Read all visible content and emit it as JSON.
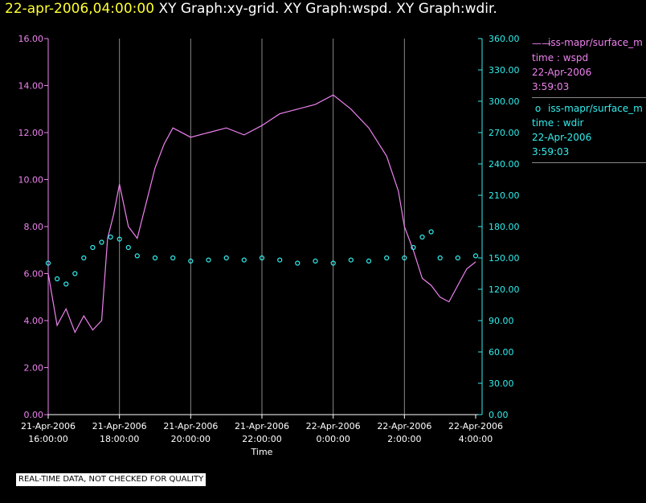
{
  "header": {
    "timestamp": "22-apr-2006,04:00:00",
    "graphs": "XY Graph:xy-grid.  XY Graph:wspd.  XY Graph:wdir."
  },
  "footer": {
    "notice": "REAL-TIME DATA, NOT CHECKED FOR QUALITY"
  },
  "legend": [
    {
      "name": "iss-mapr/surface_m",
      "var": "time : wspd",
      "date": "22-Apr-2006",
      "time": "3:59:03",
      "color": "#ee82ee"
    },
    {
      "name": "iss-mapr/surface_m",
      "var": "time : wdir",
      "date": "22-Apr-2006",
      "time": "3:59:03",
      "color": "#33eeee"
    }
  ],
  "chart_data": {
    "type": "line",
    "xlabel": "Time",
    "x_ticks": [
      [
        "21-Apr-2006",
        "16:00:00"
      ],
      [
        "21-Apr-2006",
        "18:00:00"
      ],
      [
        "21-Apr-2006",
        "20:00:00"
      ],
      [
        "21-Apr-2006",
        "22:00:00"
      ],
      [
        "22-Apr-2006",
        "0:00:00"
      ],
      [
        "22-Apr-2006",
        "2:00:00"
      ],
      [
        "22-Apr-2006",
        "4:00:00"
      ]
    ],
    "xlim": [
      "2006-04-21 16:00",
      "2006-04-22 04:00"
    ],
    "y_left": {
      "lim": [
        0,
        16
      ],
      "ticks": [
        "0.00",
        "2.00",
        "4.00",
        "6.00",
        "8.00",
        "10.00",
        "12.00",
        "14.00",
        "16.00"
      ],
      "color": "#ee82ee"
    },
    "y_right": {
      "lim": [
        0,
        360
      ],
      "ticks": [
        "0.00",
        "30.00",
        "60.00",
        "90.00",
        "120.00",
        "150.00",
        "180.00",
        "210.00",
        "240.00",
        "270.00",
        "300.00",
        "330.00",
        "360.00"
      ],
      "color": "#33eeee"
    },
    "grid": "vertical",
    "series": [
      {
        "name": "time : wspd",
        "axis": "left",
        "style": "line",
        "color": "#ee82ee",
        "points": [
          [
            "2006-04-21 16:00",
            6.0
          ],
          [
            "2006-04-21 16:15",
            3.8
          ],
          [
            "2006-04-21 16:30",
            4.5
          ],
          [
            "2006-04-21 16:45",
            3.5
          ],
          [
            "2006-04-21 17:00",
            4.2
          ],
          [
            "2006-04-21 17:15",
            3.6
          ],
          [
            "2006-04-21 17:30",
            4.0
          ],
          [
            "2006-04-21 17:40",
            7.5
          ],
          [
            "2006-04-21 17:50",
            8.5
          ],
          [
            "2006-04-21 18:00",
            9.8
          ],
          [
            "2006-04-21 18:15",
            8.0
          ],
          [
            "2006-04-21 18:30",
            7.5
          ],
          [
            "2006-04-21 18:45",
            9.0
          ],
          [
            "2006-04-21 19:00",
            10.5
          ],
          [
            "2006-04-21 19:15",
            11.5
          ],
          [
            "2006-04-21 19:30",
            12.2
          ],
          [
            "2006-04-21 20:00",
            11.8
          ],
          [
            "2006-04-21 20:30",
            12.0
          ],
          [
            "2006-04-21 21:00",
            12.2
          ],
          [
            "2006-04-21 21:30",
            11.9
          ],
          [
            "2006-04-21 22:00",
            12.3
          ],
          [
            "2006-04-21 22:30",
            12.8
          ],
          [
            "2006-04-21 23:00",
            13.0
          ],
          [
            "2006-04-21 23:30",
            13.2
          ],
          [
            "2006-04-22 00:00",
            13.6
          ],
          [
            "2006-04-22 00:30",
            13.0
          ],
          [
            "2006-04-22 01:00",
            12.2
          ],
          [
            "2006-04-22 01:30",
            11.0
          ],
          [
            "2006-04-22 01:50",
            9.5
          ],
          [
            "2006-04-22 02:00",
            8.0
          ],
          [
            "2006-04-22 02:15",
            7.0
          ],
          [
            "2006-04-22 02:30",
            5.8
          ],
          [
            "2006-04-22 02:45",
            5.5
          ],
          [
            "2006-04-22 03:00",
            5.0
          ],
          [
            "2006-04-22 03:15",
            4.8
          ],
          [
            "2006-04-22 03:30",
            5.5
          ],
          [
            "2006-04-22 03:45",
            6.2
          ],
          [
            "2006-04-22 04:00",
            6.5
          ]
        ]
      },
      {
        "name": "time : wdir",
        "axis": "right",
        "style": "markers",
        "color": "#33eeee",
        "points": [
          [
            "2006-04-21 16:00",
            145
          ],
          [
            "2006-04-21 16:15",
            130
          ],
          [
            "2006-04-21 16:30",
            125
          ],
          [
            "2006-04-21 16:45",
            135
          ],
          [
            "2006-04-21 17:00",
            150
          ],
          [
            "2006-04-21 17:15",
            160
          ],
          [
            "2006-04-21 17:30",
            165
          ],
          [
            "2006-04-21 17:45",
            170
          ],
          [
            "2006-04-21 18:00",
            168
          ],
          [
            "2006-04-21 18:15",
            160
          ],
          [
            "2006-04-21 18:30",
            152
          ],
          [
            "2006-04-21 19:00",
            150
          ],
          [
            "2006-04-21 19:30",
            150
          ],
          [
            "2006-04-21 20:00",
            147
          ],
          [
            "2006-04-21 20:30",
            148
          ],
          [
            "2006-04-21 21:00",
            150
          ],
          [
            "2006-04-21 21:30",
            148
          ],
          [
            "2006-04-21 22:00",
            150
          ],
          [
            "2006-04-21 22:30",
            148
          ],
          [
            "2006-04-21 23:00",
            145
          ],
          [
            "2006-04-21 23:30",
            147
          ],
          [
            "2006-04-22 00:00",
            145
          ],
          [
            "2006-04-22 00:30",
            148
          ],
          [
            "2006-04-22 01:00",
            147
          ],
          [
            "2006-04-22 01:30",
            150
          ],
          [
            "2006-04-22 02:00",
            150
          ],
          [
            "2006-04-22 02:15",
            160
          ],
          [
            "2006-04-22 02:30",
            170
          ],
          [
            "2006-04-22 02:45",
            175
          ],
          [
            "2006-04-22 03:00",
            150
          ],
          [
            "2006-04-22 03:30",
            150
          ],
          [
            "2006-04-22 04:00",
            152
          ]
        ]
      }
    ]
  }
}
